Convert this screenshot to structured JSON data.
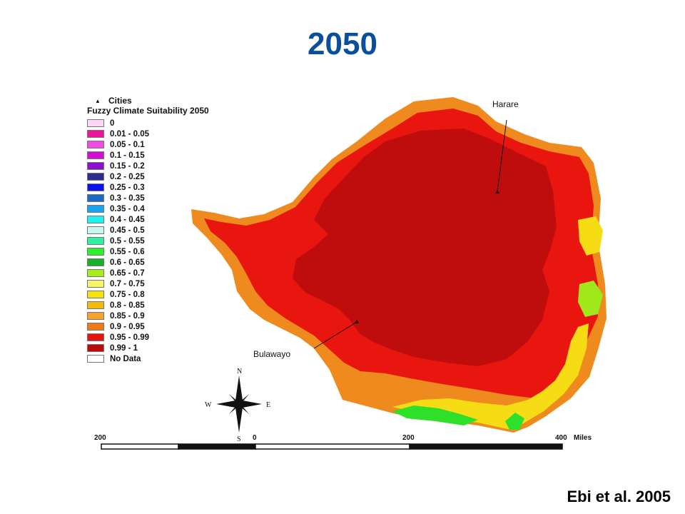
{
  "title": "2050",
  "citation": "Ebi et al. 2005",
  "legend": {
    "cities_label": "Cities",
    "title": "Fuzzy Climate Suitability 2050",
    "classes": [
      {
        "label": "0",
        "color": "#fcd6f6"
      },
      {
        "label": "0.01 - 0.05",
        "color": "#f0149a"
      },
      {
        "label": "0.05 - 0.1",
        "color": "#f04de6"
      },
      {
        "label": "0.1 - 0.15",
        "color": "#d20fd2"
      },
      {
        "label": "0.15 - 0.2",
        "color": "#8e0fcf"
      },
      {
        "label": "0.2 - 0.25",
        "color": "#2e2c8f"
      },
      {
        "label": "0.25 - 0.3",
        "color": "#0a12f0"
      },
      {
        "label": "0.3 - 0.35",
        "color": "#1a6bc4"
      },
      {
        "label": "0.35 - 0.4",
        "color": "#17a5f0"
      },
      {
        "label": "0.4 - 0.45",
        "color": "#23f0f0"
      },
      {
        "label": "0.45 - 0.5",
        "color": "#c8f5ee"
      },
      {
        "label": "0.5 - 0.55",
        "color": "#2ef0a0"
      },
      {
        "label": "0.55 - 0.6",
        "color": "#2cf02c"
      },
      {
        "label": "0.6 - 0.65",
        "color": "#17b02a"
      },
      {
        "label": "0.65 - 0.7",
        "color": "#a7ec1c"
      },
      {
        "label": "0.7 - 0.75",
        "color": "#f4f56a"
      },
      {
        "label": "0.75 - 0.8",
        "color": "#f6e10a"
      },
      {
        "label": "0.8 - 0.85",
        "color": "#f7b80e"
      },
      {
        "label": "0.85 - 0.9",
        "color": "#f7a12f"
      },
      {
        "label": "0.9 - 0.95",
        "color": "#f07a12"
      },
      {
        "label": "0.95 - 0.99",
        "color": "#e8120f"
      },
      {
        "label": "0.99 - 1",
        "color": "#bd0b0b"
      },
      {
        "label": "No Data",
        "color": "#ffffff"
      }
    ]
  },
  "cities": [
    {
      "name": "Harare"
    },
    {
      "name": "Bulawayo"
    }
  ],
  "compass": {
    "n": "N",
    "s": "S",
    "e": "E",
    "w": "W"
  },
  "scale_bar": {
    "labels": [
      "200",
      "0",
      "200",
      "400"
    ],
    "unit": "Miles"
  },
  "map_colors": {
    "outer_band": "#ef8a1e",
    "main": "#e8160f",
    "core": "#bf0c0c",
    "yellow": "#f6dc14",
    "green": "#2ee02a",
    "lightgreen": "#9ee81c"
  }
}
